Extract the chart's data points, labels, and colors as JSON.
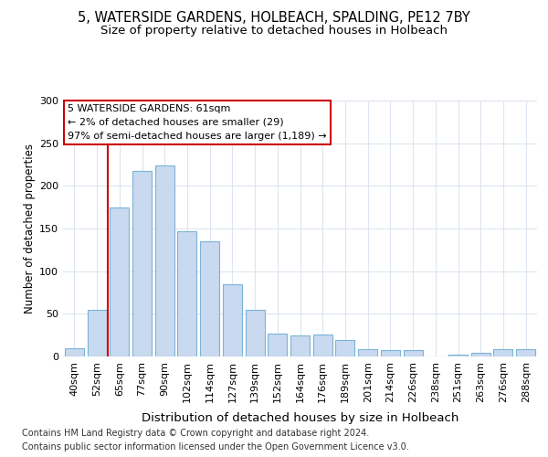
{
  "title": "5, WATERSIDE GARDENS, HOLBEACH, SPALDING, PE12 7BY",
  "subtitle": "Size of property relative to detached houses in Holbeach",
  "xlabel": "Distribution of detached houses by size in Holbeach",
  "ylabel": "Number of detached properties",
  "bar_labels": [
    "40sqm",
    "52sqm",
    "65sqm",
    "77sqm",
    "90sqm",
    "102sqm",
    "114sqm",
    "127sqm",
    "139sqm",
    "152sqm",
    "164sqm",
    "176sqm",
    "189sqm",
    "201sqm",
    "214sqm",
    "226sqm",
    "238sqm",
    "251sqm",
    "263sqm",
    "276sqm",
    "288sqm"
  ],
  "bar_values": [
    10,
    55,
    175,
    218,
    224,
    147,
    135,
    85,
    55,
    27,
    25,
    26,
    19,
    9,
    8,
    7,
    0,
    2,
    4,
    9,
    9
  ],
  "bar_color": "#c9d9f0",
  "bar_edge_color": "#7ab4d8",
  "red_line_x": 1.5,
  "annotation_lines": [
    "5 WATERSIDE GARDENS: 61sqm",
    "← 2% of detached houses are smaller (29)",
    "97% of semi-detached houses are larger (1,189) →"
  ],
  "annotation_box_color": "#ffffff",
  "annotation_border_color": "#cc0000",
  "ylim": [
    0,
    300
  ],
  "yticks": [
    0,
    50,
    100,
    150,
    200,
    250,
    300
  ],
  "footer_line1": "Contains HM Land Registry data © Crown copyright and database right 2024.",
  "footer_line2": "Contains public sector information licensed under the Open Government Licence v3.0.",
  "bg_color": "#ffffff",
  "grid_color": "#dde5f0",
  "title_fontsize": 10.5,
  "subtitle_fontsize": 9.5,
  "xlabel_fontsize": 9.5,
  "ylabel_fontsize": 8.5,
  "tick_fontsize": 8,
  "footer_fontsize": 7,
  "annot_fontsize": 8
}
